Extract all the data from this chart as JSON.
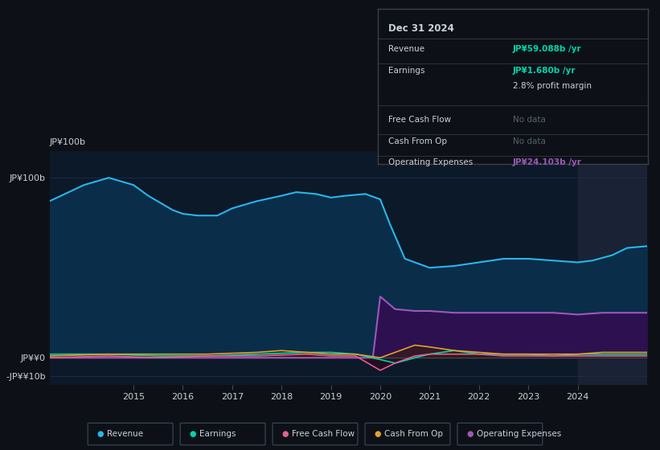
{
  "bg_color": "#0d1117",
  "plot_bg_color": "#0c1929",
  "grid_color": "#1e3050",
  "text_color": "#c9d1d9",
  "title": "Dec 31 2024",
  "ylabel_top": "JP¥100b",
  "ylabel_zero": "JP¥¥0",
  "ylabel_neg": "-JP¥¥10b",
  "ylim": [
    -15,
    115
  ],
  "ytick_vals": [
    -10,
    0,
    100
  ],
  "ytick_labels": [
    "-JP¥¥10b",
    "JP¥¥0",
    "JP¥100b"
  ],
  "xticks": [
    2015,
    2016,
    2017,
    2018,
    2019,
    2020,
    2021,
    2022,
    2023,
    2024
  ],
  "xlim": [
    2013.3,
    2025.4
  ],
  "revenue_color": "#29b5e8",
  "revenue_fill": "#0a2d4a",
  "earnings_color": "#00d4aa",
  "cashflow_color": "#e06090",
  "cashfromop_color": "#e0a030",
  "opex_color": "#9b59b6",
  "opex_fill": "#2d1050",
  "info_box_bg": "#0d1117",
  "info_box_border": "#3a3f4a",
  "revenue_label": "JP¥59.088b",
  "earnings_label": "JP¥1.680b",
  "value_color": "#00d4aa",
  "profit_margin": "2.8%",
  "opex_label": "JP¥24.103b",
  "opex_label_color": "#9b59b6",
  "no_data_color": "#555f6a",
  "legend_items": [
    "Revenue",
    "Earnings",
    "Free Cash Flow",
    "Cash From Op",
    "Operating Expenses"
  ],
  "legend_colors": [
    "#29b5e8",
    "#00d4aa",
    "#e06090",
    "#e0a030",
    "#9b59b6"
  ],
  "shade_start": 2024.0,
  "shade_color": "#1a2235",
  "revenue_x": [
    2013.3,
    2014.0,
    2014.5,
    2015.0,
    2015.3,
    2015.8,
    2016.0,
    2016.3,
    2016.7,
    2017.0,
    2017.5,
    2018.0,
    2018.3,
    2018.7,
    2019.0,
    2019.3,
    2019.7,
    2020.0,
    2020.2,
    2020.5,
    2021.0,
    2021.5,
    2022.0,
    2022.5,
    2023.0,
    2023.5,
    2024.0,
    2024.3,
    2024.7,
    2025.0,
    2025.4
  ],
  "revenue_y": [
    87,
    96,
    100,
    96,
    90,
    82,
    80,
    79,
    79,
    83,
    87,
    90,
    92,
    91,
    89,
    90,
    91,
    88,
    74,
    55,
    50,
    51,
    53,
    55,
    55,
    54,
    53,
    54,
    57,
    61,
    62
  ],
  "earnings_x": [
    2013.3,
    2014.5,
    2015.5,
    2016.5,
    2017.5,
    2018.5,
    2019.0,
    2019.5,
    2020.0,
    2020.3,
    2020.7,
    2021.0,
    2021.5,
    2022.0,
    2022.5,
    2023.0,
    2023.5,
    2024.0,
    2024.5,
    2025.0,
    2025.4
  ],
  "earnings_y": [
    2,
    2,
    1,
    1,
    2,
    3,
    3,
    2,
    -1,
    -3,
    0,
    2,
    4,
    2,
    2,
    2,
    1,
    2,
    2,
    2,
    2
  ],
  "cashflow_x": [
    2013.3,
    2014.5,
    2015.5,
    2016.5,
    2017.5,
    2018.5,
    2019.0,
    2019.5,
    2020.0,
    2020.3,
    2020.7,
    2021.0,
    2021.5,
    2022.0,
    2022.5,
    2023.0,
    2023.5,
    2024.0,
    2024.5,
    2025.0,
    2025.4
  ],
  "cashflow_y": [
    0,
    1,
    0,
    1,
    1,
    2,
    1,
    1,
    -7,
    -3,
    1,
    2,
    2,
    2,
    1,
    1,
    1,
    1,
    1,
    1,
    1
  ],
  "cashfromop_x": [
    2013.3,
    2014.5,
    2015.5,
    2016.5,
    2017.5,
    2018.0,
    2018.5,
    2019.0,
    2019.5,
    2020.0,
    2020.3,
    2020.7,
    2021.0,
    2021.5,
    2022.0,
    2022.5,
    2023.0,
    2023.5,
    2024.0,
    2024.5,
    2025.0,
    2025.4
  ],
  "cashfromop_y": [
    1,
    2,
    2,
    2,
    3,
    4,
    3,
    2,
    2,
    0,
    3,
    7,
    6,
    4,
    3,
    2,
    2,
    2,
    2,
    3,
    3,
    3
  ],
  "opex_x": [
    2013.3,
    2019.85,
    2020.0,
    2020.3,
    2020.7,
    2021.0,
    2021.5,
    2022.0,
    2022.5,
    2023.0,
    2023.5,
    2024.0,
    2024.5,
    2025.0,
    2025.4
  ],
  "opex_y": [
    0,
    0,
    34,
    27,
    26,
    26,
    25,
    25,
    25,
    25,
    25,
    24,
    25,
    25,
    25
  ]
}
